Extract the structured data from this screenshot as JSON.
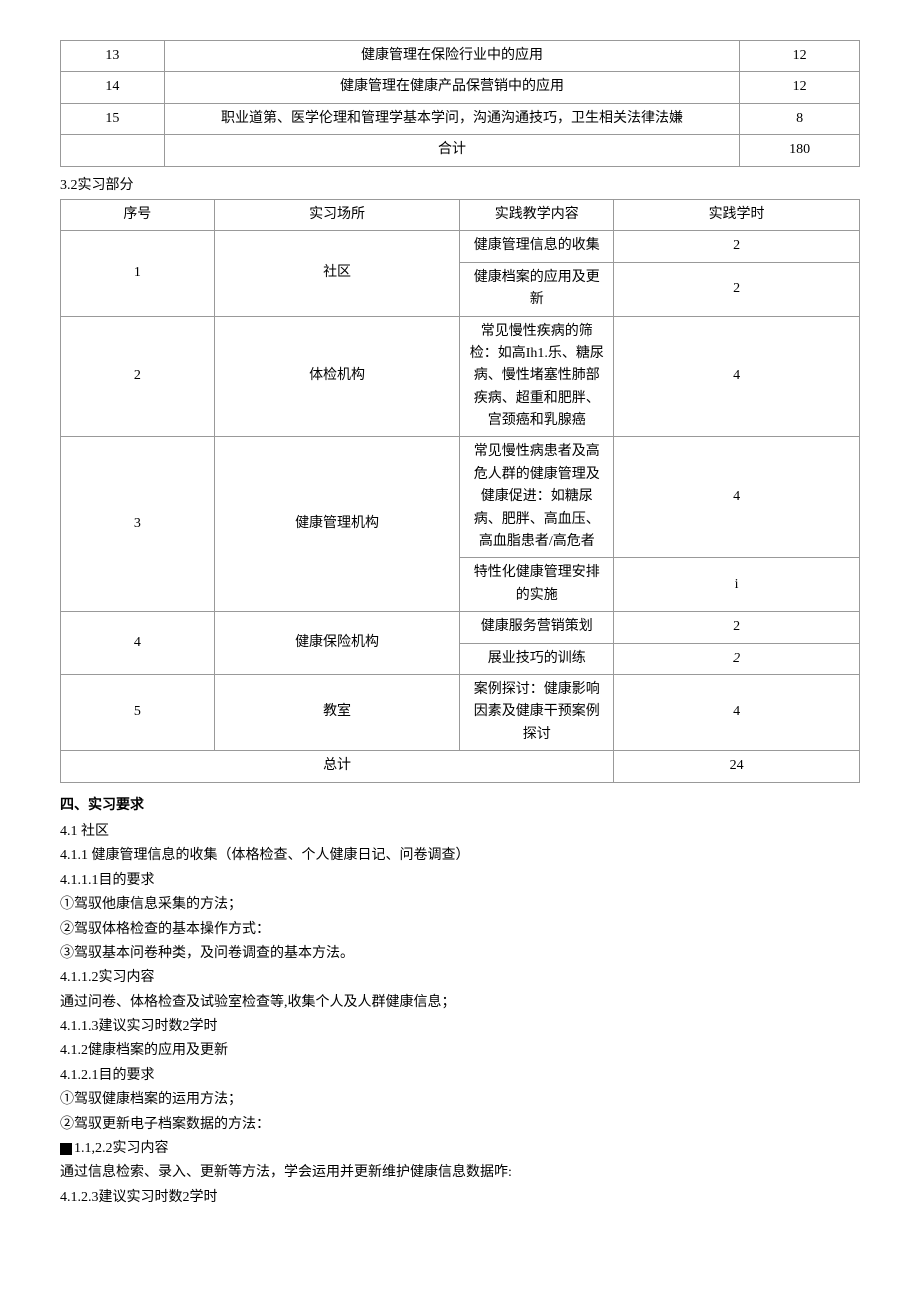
{
  "table1": {
    "rows": [
      {
        "num": "13",
        "content": "健康管理在保险行业中的应用",
        "hours": "12"
      },
      {
        "num": "14",
        "content": "健康管理在健康产品保营销中的应用",
        "hours": "12"
      },
      {
        "num": "15",
        "content": "职业道第、医学伦理和管理学基本学问，沟通沟通技巧，卫生相关法律法嫌",
        "hours": "8"
      },
      {
        "num": "",
        "content": "合计",
        "hours": "180"
      }
    ]
  },
  "section32": "3.2实习部分",
  "table2": {
    "headers": {
      "c1": "序号",
      "c2": "实习场所",
      "c3": "实践教学内容",
      "c4": "实践学时"
    },
    "r1": {
      "num": "1",
      "place": "社区",
      "content1": "健康管理信息的收集",
      "h1": "2",
      "content2": "健康档案的应用及更新",
      "h2": "2"
    },
    "r2": {
      "num": "2",
      "place": "体检机构",
      "content": "常见慢性疾病的筛检：如高Ih1.乐、糖尿病、慢性堵塞性肺部疾病、超重和肥胖、宫颈癌和乳腺癌",
      "h": "4"
    },
    "r3": {
      "num": "3",
      "place": "健康管理机构",
      "content1": "常见慢性病患者及高危人群的健康管理及健康促进：如糖尿病、肥胖、高血压、高血脂患者/高危者",
      "h1": "4",
      "content2": "特性化健康管理安排的实施",
      "h2": "i"
    },
    "r4": {
      "num": "4",
      "place": "健康保险机构",
      "content1": "健康服务营销策划",
      "h1": "2",
      "content2": "展业技巧的训练",
      "h2": "2"
    },
    "r5": {
      "num": "5",
      "place": "教室",
      "content": "案例探讨：健康影响因素及健康干预案例探讨",
      "h": "4"
    },
    "total": {
      "label": "总计",
      "value": "24"
    }
  },
  "section4": {
    "title": "四、实习要求",
    "s41": "4.1  社区",
    "s411": "4.1.1  健康管理信息的收集（体格检查、个人健康日记、问卷调查）",
    "s4111": "4.1.1.1目的要求",
    "l1": "①驾驭他康信息采集的方法；",
    "l2": "②驾驭体格检查的基本操作方式：",
    "l3": "③驾驭基本问卷种类，及问卷调查的基本方法。",
    "s4112": "4.1.1.2实习内容",
    "l4": "通过问卷、体格检查及试验室检查等,收集个人及人群健康信息；",
    "s4113": "4.1.1.3建议实习时数2学时",
    "s412": "4.1.2健康档案的应用及更新",
    "s4121": "4.1.2.1目的要求",
    "l5": "①驾驭健康档案的运用方法；",
    "l6": "②驾驭更新电子档案数据的方法：",
    "s4122": "1.1,2.2实习内容",
    "l7": "通过信息检索、录入、更新等方法，学会运用并更新维护健康信息数据咋:",
    "s4123": "4.1.2.3建议实习时数2学时"
  }
}
